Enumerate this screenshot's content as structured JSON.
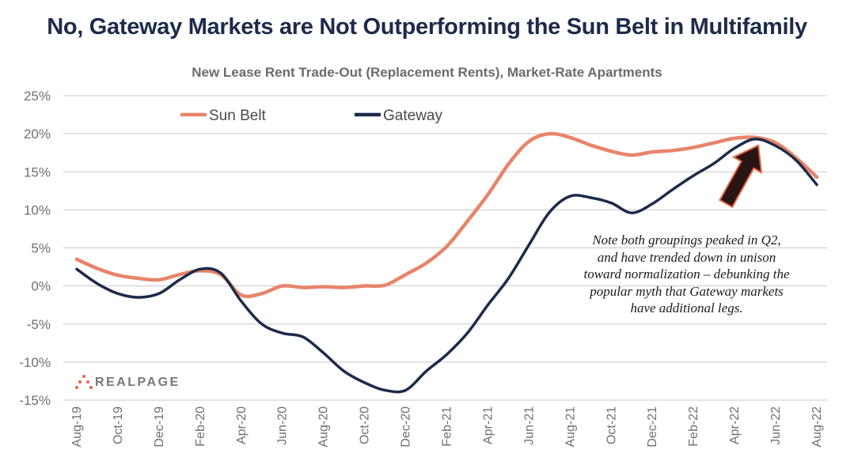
{
  "chart_data": {
    "type": "line",
    "title": "No, Gateway Markets are Not Outperforming the Sun Belt in Multifamily",
    "subtitle": "New Lease Rent Trade-Out (Replacement Rents), Market-Rate Apartments",
    "xlabel": "",
    "ylabel": "",
    "ylim": [
      -15,
      25
    ],
    "yticks": [
      25,
      20,
      15,
      10,
      5,
      0,
      -5,
      -10,
      -15
    ],
    "ytick_labels": [
      "25%",
      "20%",
      "15%",
      "10%",
      "5%",
      "0%",
      "-5%",
      "-10%",
      "-15%"
    ],
    "grid": true,
    "legend_position": "top-left",
    "x": [
      "Aug-19",
      "Sep-19",
      "Oct-19",
      "Nov-19",
      "Dec-19",
      "Jan-20",
      "Feb-20",
      "Mar-20",
      "Apr-20",
      "May-20",
      "Jun-20",
      "Jul-20",
      "Aug-20",
      "Sep-20",
      "Oct-20",
      "Nov-20",
      "Dec-20",
      "Jan-21",
      "Feb-21",
      "Mar-21",
      "Apr-21",
      "May-21",
      "Jun-21",
      "Jul-21",
      "Aug-21",
      "Sep-21",
      "Oct-21",
      "Nov-21",
      "Dec-21",
      "Jan-22",
      "Feb-22",
      "Mar-22",
      "Apr-22",
      "May-22",
      "Jun-22",
      "Jul-22",
      "Aug-22"
    ],
    "xtick_labels": [
      "Aug-19",
      "Oct-19",
      "Dec-19",
      "Feb-20",
      "Apr-20",
      "Jun-20",
      "Aug-20",
      "Oct-20",
      "Dec-20",
      "Feb-21",
      "Apr-21",
      "Jun-21",
      "Aug-21",
      "Oct-21",
      "Dec-21",
      "Feb-22",
      "Apr-22",
      "Jun-22",
      "Aug-22"
    ],
    "series": [
      {
        "name": "Sun Belt",
        "color": "#e8846a",
        "values": [
          3.5,
          2.3,
          1.4,
          1.0,
          0.8,
          1.5,
          2.0,
          1.5,
          -1.2,
          -1.0,
          0.0,
          -0.2,
          -0.1,
          -0.2,
          0.0,
          0.1,
          1.5,
          3.0,
          5.2,
          8.5,
          12.0,
          16.0,
          19.0,
          20.0,
          19.5,
          18.5,
          17.7,
          17.2,
          17.6,
          17.8,
          18.2,
          18.8,
          19.4,
          19.5,
          18.8,
          16.8,
          14.3
        ]
      },
      {
        "name": "Gateway",
        "color": "#1c2b4a",
        "values": [
          2.2,
          0.3,
          -1.0,
          -1.5,
          -1.0,
          0.8,
          2.2,
          1.7,
          -2.0,
          -5.0,
          -6.2,
          -6.7,
          -8.8,
          -11.2,
          -12.7,
          -13.7,
          -13.7,
          -11.2,
          -9.0,
          -6.2,
          -2.5,
          1.0,
          5.4,
          9.7,
          11.8,
          11.6,
          10.9,
          9.6,
          10.8,
          12.7,
          14.5,
          16.1,
          18.1,
          19.3,
          18.4,
          16.5,
          13.3
        ]
      }
    ],
    "annotation": "Note both groupings peaked in Q2, and have trended down in unison toward normalization – debunking the popular myth that Gateway markets have additional legs.",
    "arrow_target": {
      "x": "May-22",
      "y": 19.5
    }
  },
  "branding": {
    "logo_text": "REALPAGE",
    "logo_color": "#e5663f"
  },
  "colors": {
    "title": "#1c2b4a",
    "grid": "#c8c8c8",
    "arrow_fill": "#2a1414",
    "arrow_stroke": "#e5663f"
  }
}
